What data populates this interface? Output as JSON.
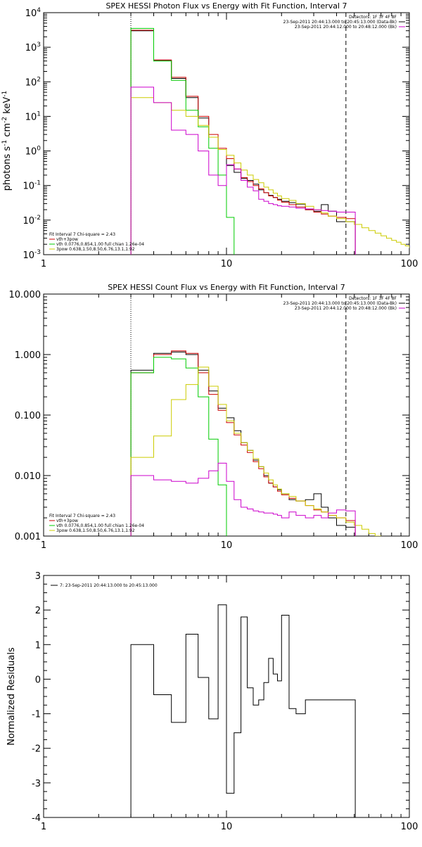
{
  "chart_data": [
    {
      "type": "line",
      "title": "SPEX HESSI Photon Flux vs Energy with Fit Function, Interval 7",
      "ylabel": "photons s$^{-1}$ cm$^{-2}$ keV$^{-1}$",
      "ylabel_display": {
        "base": "photons s",
        "sup1": "-1",
        "mid": " cm",
        "sup2": "-2",
        "end": " keV",
        "sup3": "-1"
      },
      "xscale": "log",
      "yscale": "log",
      "xlim": [
        1,
        100
      ],
      "ylim": [
        0.001,
        10000
      ],
      "x_ticks": [
        1,
        10,
        100
      ],
      "x_tick_labels": [
        "1",
        "10",
        "100"
      ],
      "y_ticks": [
        0.001,
        0.01,
        0.1,
        1,
        10,
        100,
        1000,
        10000
      ],
      "y_tick_labels": [
        {
          "base": "10",
          "exp": "-3"
        },
        {
          "base": "10",
          "exp": "-2"
        },
        {
          "base": "10",
          "exp": "-1"
        },
        {
          "base": "10",
          "exp": "0"
        },
        {
          "base": "10",
          "exp": "1"
        },
        {
          "base": "10",
          "exp": "2"
        },
        {
          "base": "10",
          "exp": "3"
        },
        {
          "base": "10",
          "exp": "4"
        }
      ],
      "vlines": [
        {
          "x": 3,
          "style": "dotted"
        },
        {
          "x": 45,
          "style": "dashed"
        }
      ],
      "legend_top_right": [
        {
          "text": "Detectors: 1F 3F 4F 8F",
          "color": ""
        },
        {
          "text": "23-Sep-2011 20:44:13.000 to 20:45:13.000 (Data-Bk)",
          "color": "#000000"
        },
        {
          "text": "23-Sep-2011 20:44:12.000 to 20:48:12.000 (Bk)",
          "color": "#cc00cc"
        }
      ],
      "legend_bottom_left": [
        {
          "text": "Fit Interval  7    Chi-square = 2.43",
          "color": ""
        },
        {
          "text": "vth+3pow",
          "color": "#cc0000"
        },
        {
          "text": "vth 0.0776,0.854,1.00  full chian 1.26e-04",
          "color": "#00cc00"
        },
        {
          "text": "3pow 0.638,1.50,8.50,6.76,13.1,1.92",
          "color": "#cccc00"
        }
      ],
      "series": [
        {
          "name": "",
          "color": "#000000",
          "x": [
            3,
            4,
            5,
            6,
            7,
            8,
            9,
            10,
            11,
            12,
            13,
            14,
            15,
            16,
            17,
            18,
            19,
            20,
            22,
            24,
            27,
            30,
            33,
            36,
            40,
            45
          ],
          "y": [
            3000,
            420,
            125,
            35,
            9,
            2.5,
            1.1,
            0.38,
            0.24,
            0.16,
            0.14,
            0.11,
            0.075,
            0.062,
            0.052,
            0.045,
            0.04,
            0.035,
            0.032,
            0.029,
            0.02,
            0.018,
            0.028,
            0.018,
            0.009,
            0.009
          ]
        },
        {
          "name": "",
          "color": "#cc0000",
          "x": [
            3,
            4,
            5,
            6,
            7,
            8,
            9,
            10,
            11,
            12,
            13,
            14,
            15,
            16,
            17,
            18,
            19,
            20,
            22,
            24,
            27,
            30,
            33,
            36,
            40,
            45
          ],
          "y": [
            3100,
            430,
            135,
            38,
            10,
            3,
            1.2,
            0.6,
            0.3,
            0.17,
            0.13,
            0.1,
            0.08,
            0.062,
            0.05,
            0.045,
            0.038,
            0.033,
            0.028,
            0.024,
            0.02,
            0.017,
            0.015,
            0.013,
            0.012,
            0.011
          ]
        },
        {
          "name": "",
          "color": "#00cc00",
          "x": [
            3,
            4,
            5,
            6,
            7,
            8,
            9,
            10,
            11,
            12,
            13
          ],
          "y": [
            3500,
            400,
            110,
            15,
            5,
            1.2,
            0.2,
            0.012,
            0.0008,
            0.0008,
            0.0008
          ]
        },
        {
          "name": "",
          "color": "#cccc00",
          "x": [
            3,
            4,
            5,
            6,
            7,
            8,
            9,
            10,
            11,
            12,
            13,
            14,
            15,
            16,
            17,
            18,
            19,
            20,
            22,
            24,
            27,
            30,
            33,
            36,
            40,
            45,
            50,
            55,
            60,
            65,
            70,
            75,
            80,
            85,
            90,
            95,
            100
          ],
          "y": [
            35,
            25,
            15,
            10,
            5.5,
            2.5,
            1.1,
            0.75,
            0.45,
            0.28,
            0.2,
            0.15,
            0.12,
            0.09,
            0.075,
            0.06,
            0.05,
            0.042,
            0.037,
            0.03,
            0.025,
            0.02,
            0.016,
            0.013,
            0.011,
            0.009,
            0.0075,
            0.006,
            0.005,
            0.0042,
            0.0035,
            0.003,
            0.0026,
            0.0023,
            0.002,
            0.0018,
            0.0016
          ]
        },
        {
          "name": "",
          "color": "#cc00cc",
          "x": [
            3,
            4,
            5,
            6,
            7,
            8,
            9,
            10,
            11,
            12,
            13,
            14,
            15,
            16,
            17,
            18,
            19,
            20,
            22,
            24,
            27,
            30,
            33,
            36,
            40,
            45
          ],
          "y": [
            70,
            25,
            4,
            3,
            1,
            0.2,
            0.1,
            0.4,
            0.3,
            0.14,
            0.09,
            0.07,
            0.04,
            0.035,
            0.03,
            0.028,
            0.026,
            0.025,
            0.024,
            0.022,
            0.021,
            0.02,
            0.019,
            0.018,
            0.017,
            0.017
          ]
        }
      ]
    },
    {
      "type": "line",
      "title": "SPEX HESSI Count Flux vs Energy with Fit Function, Interval 7",
      "ylabel": "",
      "xscale": "log",
      "yscale": "log",
      "xlim": [
        1,
        100
      ],
      "ylim": [
        0.001,
        10
      ],
      "x_ticks": [
        1,
        10,
        100
      ],
      "x_tick_labels": [
        "1",
        "10",
        "100"
      ],
      "y_ticks": [
        0.001,
        0.01,
        0.1,
        1,
        10
      ],
      "y_tick_labels": [
        "0.001",
        "0.010",
        "0.100",
        "1.000",
        "10.000"
      ],
      "vlines": [
        {
          "x": 3,
          "style": "dotted"
        },
        {
          "x": 45,
          "style": "dashed"
        }
      ],
      "legend_top_right": [
        {
          "text": "Detectors: 1F 3F 4F 8F",
          "color": ""
        },
        {
          "text": "23-Sep-2011 20:44:13.000 to 20:45:13.000 (Data-Bk)",
          "color": "#000000"
        },
        {
          "text": "23-Sep-2011 20:44:12.000 to 20:48:12.000 (Bk)",
          "color": "#cc00cc"
        }
      ],
      "legend_bottom_left": [
        {
          "text": "Fit Interval  7    Chi-square = 2.43",
          "color": ""
        },
        {
          "text": "vth+3pow",
          "color": "#cc0000"
        },
        {
          "text": "vth 0.0776,0.854,1.00  full chian 1.26e-04",
          "color": "#00cc00"
        },
        {
          "text": "3pow 0.638,1.50,8.50,6.76,13.1,1.92",
          "color": "#cccc00"
        }
      ],
      "series": [
        {
          "name": "",
          "color": "#000000",
          "x": [
            3,
            4,
            5,
            6,
            7,
            8,
            9,
            10,
            11,
            12,
            13,
            14,
            15,
            16,
            17,
            18,
            19,
            20,
            22,
            24,
            27,
            30,
            33,
            36,
            40,
            45
          ],
          "y": [
            0.55,
            1.05,
            1.1,
            1.0,
            0.55,
            0.25,
            0.13,
            0.09,
            0.055,
            0.035,
            0.026,
            0.018,
            0.014,
            0.01,
            0.0075,
            0.0065,
            0.0058,
            0.005,
            0.004,
            0.0038,
            0.004,
            0.005,
            0.003,
            0.002,
            0.0015,
            0.0014
          ]
        },
        {
          "name": "",
          "color": "#cc0000",
          "x": [
            3,
            4,
            5,
            6,
            7,
            8,
            9,
            10,
            11,
            12,
            13,
            14,
            15,
            16,
            17,
            18,
            19,
            20,
            22,
            24,
            27,
            30,
            33,
            36,
            40,
            45
          ],
          "y": [
            0.5,
            1.0,
            1.15,
            1.05,
            0.5,
            0.22,
            0.12,
            0.075,
            0.047,
            0.032,
            0.024,
            0.017,
            0.013,
            0.0095,
            0.0075,
            0.0065,
            0.0055,
            0.0048,
            0.0042,
            0.0038,
            0.0032,
            0.0027,
            0.0025,
            0.0022,
            0.002,
            0.0018
          ]
        },
        {
          "name": "",
          "color": "#00cc00",
          "x": [
            3,
            4,
            5,
            6,
            7,
            8,
            9,
            10
          ],
          "y": [
            0.5,
            0.9,
            0.85,
            0.6,
            0.2,
            0.04,
            0.007,
            0.0008
          ]
        },
        {
          "name": "",
          "color": "#cccc00",
          "x": [
            3,
            4,
            5,
            6,
            7,
            8,
            9,
            10,
            11,
            12,
            13,
            14,
            15,
            16,
            17,
            18,
            19,
            20,
            22,
            24,
            27,
            30,
            33,
            36,
            40,
            45,
            50,
            55,
            60,
            65,
            70,
            75
          ],
          "y": [
            0.02,
            0.045,
            0.18,
            0.32,
            0.62,
            0.3,
            0.15,
            0.08,
            0.05,
            0.035,
            0.026,
            0.019,
            0.014,
            0.011,
            0.0085,
            0.007,
            0.006,
            0.005,
            0.0045,
            0.0038,
            0.0032,
            0.0028,
            0.0025,
            0.0022,
            0.002,
            0.0017,
            0.0015,
            0.0013,
            0.0011,
            0.001,
            0.0009,
            0.0008
          ]
        },
        {
          "name": "",
          "color": "#cc00cc",
          "x": [
            3,
            4,
            5,
            6,
            7,
            8,
            9,
            10,
            11,
            12,
            13,
            14,
            15,
            16,
            17,
            18,
            19,
            20,
            22,
            24,
            27,
            30,
            33,
            36,
            40,
            45
          ],
          "y": [
            0.01,
            0.0085,
            0.008,
            0.0075,
            0.009,
            0.012,
            0.016,
            0.008,
            0.004,
            0.003,
            0.0028,
            0.0026,
            0.0025,
            0.0024,
            0.0024,
            0.0023,
            0.0022,
            0.002,
            0.0025,
            0.0022,
            0.002,
            0.0022,
            0.002,
            0.0024,
            0.0027,
            0.0026
          ]
        }
      ]
    },
    {
      "type": "line",
      "title": "",
      "ylabel": "Normalized Residuals",
      "xscale": "log",
      "yscale": "linear",
      "xlim": [
        1,
        100
      ],
      "ylim": [
        -4,
        3
      ],
      "x_ticks": [
        1,
        10,
        100
      ],
      "x_tick_labels": [
        "1",
        "10",
        "100"
      ],
      "y_ticks": [
        -4,
        -3,
        -2,
        -1,
        0,
        1,
        2,
        3
      ],
      "y_tick_labels": [
        "-4",
        "-3",
        "-2",
        "-1",
        "0",
        "1",
        "2",
        "3"
      ],
      "legend_top_left": [
        {
          "text": "7: 23-Sep-2011 20:44:13.000 to 20:45:13.000",
          "color": "#000000"
        }
      ],
      "series": [
        {
          "name": "",
          "color": "#000000",
          "x": [
            3,
            4,
            5,
            6,
            7,
            8,
            9,
            10,
            11,
            12,
            13,
            14,
            15,
            16,
            17,
            18,
            19,
            20,
            22,
            24,
            27,
            30,
            33,
            36,
            40,
            45
          ],
          "y": [
            1.0,
            -0.45,
            -1.25,
            1.3,
            0.05,
            -1.15,
            2.15,
            -3.3,
            -1.55,
            1.8,
            -0.25,
            -0.75,
            -0.6,
            -0.1,
            0.6,
            0.15,
            -0.05,
            1.85,
            -0.85,
            -1.0,
            -0.6,
            -0.6,
            -0.6,
            -0.6,
            -0.6,
            -0.6
          ]
        }
      ]
    }
  ]
}
